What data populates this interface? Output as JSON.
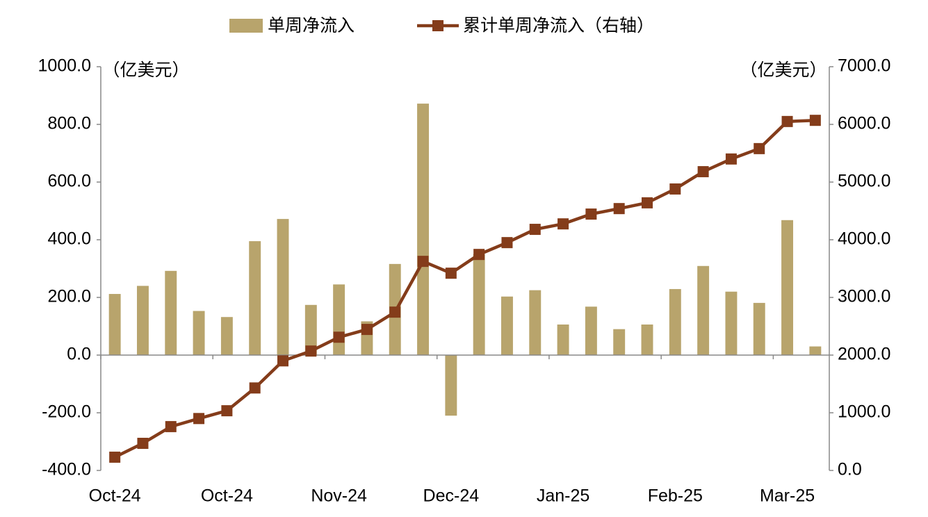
{
  "chart_data": {
    "type": "bar-line",
    "unit_left": "（亿美元）",
    "unit_right": "（亿美元）",
    "categories": [
      "Oct-24",
      null,
      null,
      null,
      "Oct-24",
      null,
      null,
      null,
      "Nov-24",
      null,
      null,
      null,
      "Dec-24",
      null,
      null,
      null,
      "Jan-25",
      null,
      null,
      null,
      "Feb-25",
      null,
      null,
      null,
      "Mar-25",
      null
    ],
    "series": [
      {
        "name": "单周净流入",
        "color": "#b8a46c",
        "type": "bar",
        "values": [
          212,
          240,
          292,
          153,
          132,
          395,
          472,
          174,
          245,
          117,
          316,
          872,
          -210,
          350,
          203,
          225,
          106,
          168,
          90,
          106,
          229,
          309,
          220,
          181,
          468,
          30
        ]
      },
      {
        "name": "累计单周净流入（右轴）",
        "color": "#843c1a",
        "type": "line",
        "axis": "y2",
        "values": [
          230,
          470,
          760,
          900,
          1035,
          1430,
          1900,
          2070,
          2310,
          2445,
          2745,
          3625,
          3420,
          3745,
          3950,
          4180,
          4275,
          4445,
          4540,
          4640,
          4880,
          5180,
          5400,
          5580,
          6050,
          6070
        ]
      }
    ],
    "ylim": [
      -400,
      1000
    ],
    "yticks": [
      {
        "value": -400,
        "label": "-400.0"
      },
      {
        "value": -200,
        "label": "-200.0"
      },
      {
        "value": 0,
        "label": "0.0"
      },
      {
        "value": 200,
        "label": "200.0"
      },
      {
        "value": 400,
        "label": "400.0"
      },
      {
        "value": 600,
        "label": "600.0"
      },
      {
        "value": 800,
        "label": "800.0"
      },
      {
        "value": 1000,
        "label": "1000.0"
      }
    ],
    "y2lim": [
      0,
      7000
    ],
    "y2ticks": [
      {
        "value": 0,
        "label": "0.0"
      },
      {
        "value": 1000,
        "label": "1000.0"
      },
      {
        "value": 2000,
        "label": "2000.0"
      },
      {
        "value": 3000,
        "label": "3000.0"
      },
      {
        "value": 4000,
        "label": "4000.0"
      },
      {
        "value": 5000,
        "label": "5000.0"
      },
      {
        "value": 6000,
        "label": "6000.0"
      },
      {
        "value": 7000,
        "label": "7000.0"
      }
    ]
  }
}
